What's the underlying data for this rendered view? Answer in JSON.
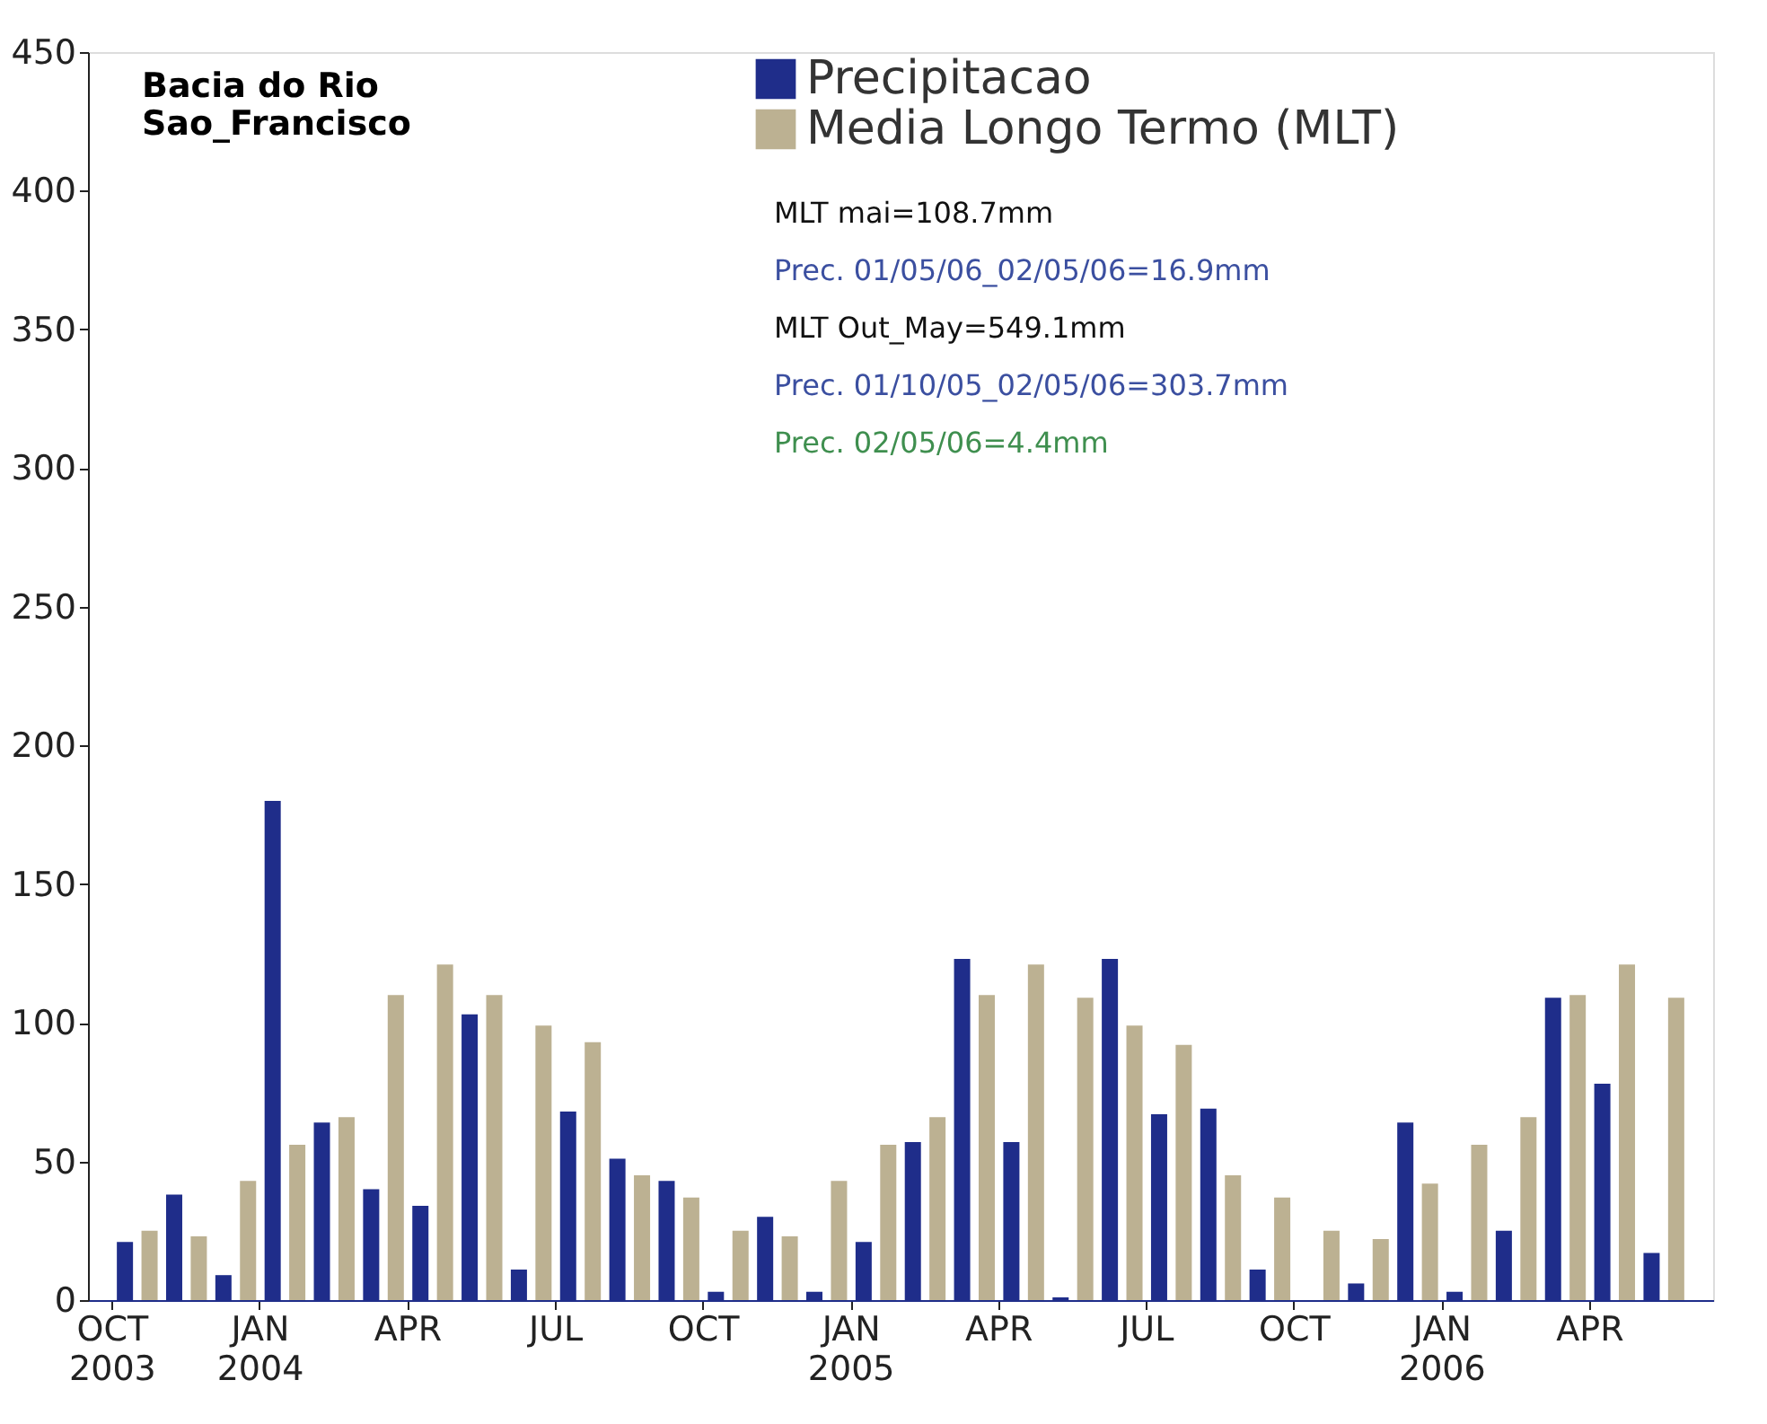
{
  "chart_data": {
    "type": "bar",
    "title": "Bacia do Rio\nSao_Francisco",
    "categories": [
      "OCT 2003",
      null,
      null,
      "JAN 2004",
      null,
      null,
      "APR",
      null,
      null,
      "JUL",
      null,
      null,
      "OCT",
      null,
      null,
      "JAN 2005",
      null,
      null,
      "APR",
      null,
      null,
      "JUL",
      null,
      null,
      "OCT",
      null,
      null,
      "JAN 2006",
      null,
      null,
      "APR",
      null,
      null
    ],
    "series": [
      {
        "name": "Precipitacao",
        "color": "#1f2d8a",
        "values": [
          21,
          38,
          9,
          180,
          64,
          40,
          34,
          103,
          11,
          68,
          51,
          43,
          3,
          30,
          3,
          21,
          57,
          123,
          57,
          1,
          123,
          67,
          69,
          11,
          0,
          6,
          64,
          3,
          25,
          109,
          78,
          17,
          null
        ]
      },
      {
        "name": "Media Longo Termo (MLT)",
        "color": "#bcb192",
        "values": [
          null,
          25,
          23,
          43,
          56,
          66,
          110,
          121,
          110,
          99,
          93,
          45,
          37,
          25,
          23,
          43,
          56,
          66,
          110,
          121,
          109,
          99,
          92,
          45,
          37,
          25,
          22,
          42,
          56,
          66,
          110,
          121,
          109
        ]
      }
    ],
    "ylim": [
      0,
      450
    ],
    "yticks": [
      0,
      50,
      100,
      150,
      200,
      250,
      300,
      350,
      400,
      450
    ],
    "grid": false,
    "legend": "top right",
    "annotations": [
      "MLT mai=108.7mm",
      "Prec. 01/05/06_02/05/06=16.9mm",
      "MLT Out_May=549.1mm",
      "Prec. 01/10/05_02/05/06=303.7mm",
      "Prec. 02/05/06=4.4mm"
    ]
  }
}
